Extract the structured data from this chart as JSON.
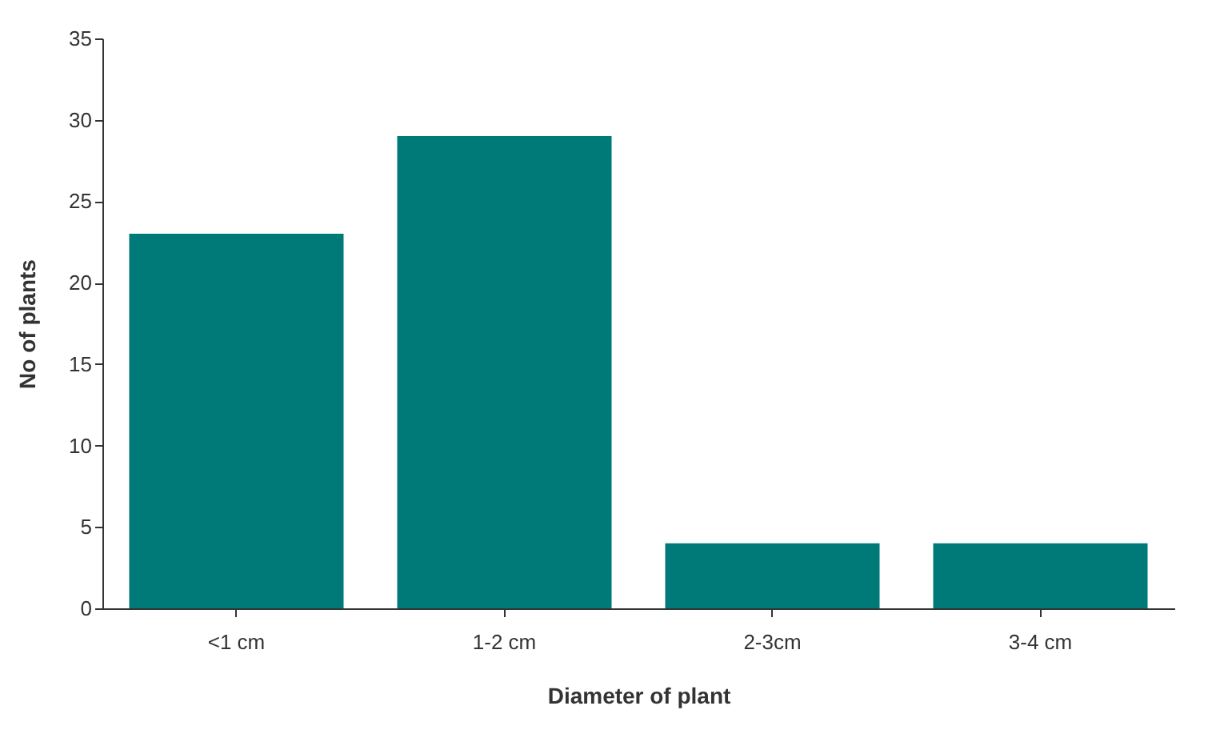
{
  "chart_data": {
    "type": "bar",
    "xlabel": "Diameter of plant",
    "ylabel": "No of plants",
    "categories": [
      "<1 cm",
      "1-2 cm",
      "2-3cm",
      "3-4 cm"
    ],
    "values": [
      23,
      29,
      4,
      4
    ],
    "color": "#007a78",
    "ylim": [
      0,
      35
    ],
    "yticks": [
      0,
      5,
      10,
      15,
      20,
      25,
      30,
      35
    ],
    "grid": false
  }
}
